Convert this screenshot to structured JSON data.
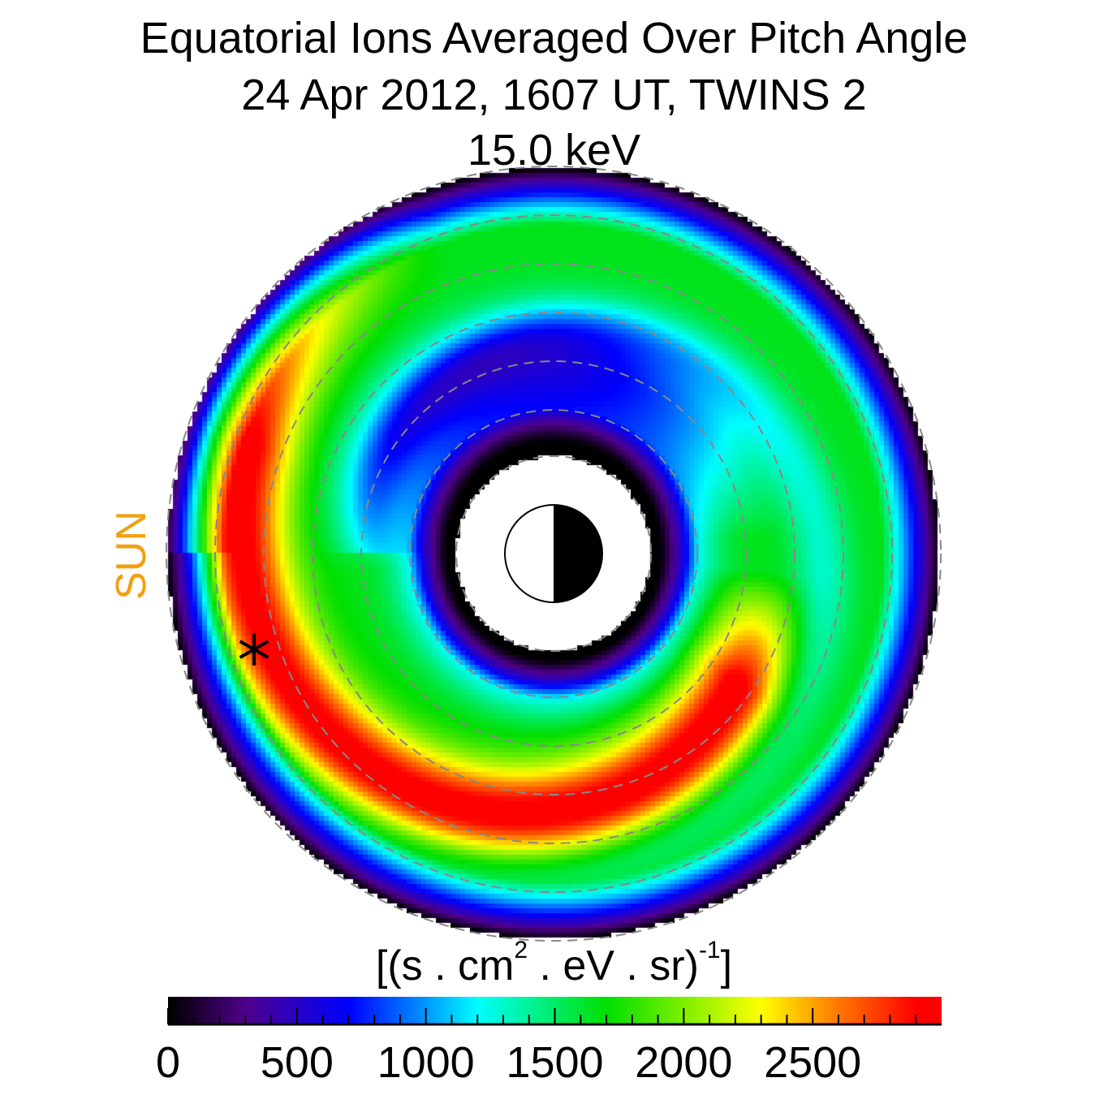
{
  "title": {
    "line1": "Equatorial Ions Averaged Over Pitch Angle",
    "line2": "24 Apr 2012, 1607 UT,  TWINS 2",
    "line3": "15.0 keV"
  },
  "sun_label": "SUN",
  "colors": {
    "sun_label": "#f0a010",
    "grid": "#888888"
  },
  "chart_data": {
    "type": "heatmap",
    "colorbar": {
      "label_main": "[(s . cm",
      "label_sup1": "2",
      "label_mid": " . eV . sr)",
      "label_sup2": "-1",
      "label_end": "]",
      "range": [
        0,
        3000
      ],
      "major_ticks": [
        0,
        500,
        1000,
        1500,
        2000,
        2500
      ],
      "tick_labels": [
        "0",
        "500",
        "1000",
        "1500",
        "2000",
        "2500"
      ],
      "minor_step": 100,
      "colormap": [
        [
          0,
          "#000000"
        ],
        [
          300,
          "#50008c"
        ],
        [
          700,
          "#0000ff"
        ],
        [
          1200,
          "#00ffff"
        ],
        [
          1700,
          "#00e000"
        ],
        [
          2300,
          "#ffff00"
        ],
        [
          2600,
          "#ff7800"
        ],
        [
          2900,
          "#ff0000"
        ]
      ]
    },
    "markers": [
      {
        "type": "asterisk",
        "name": "spacecraft-position"
      }
    ],
    "grid": true
  }
}
